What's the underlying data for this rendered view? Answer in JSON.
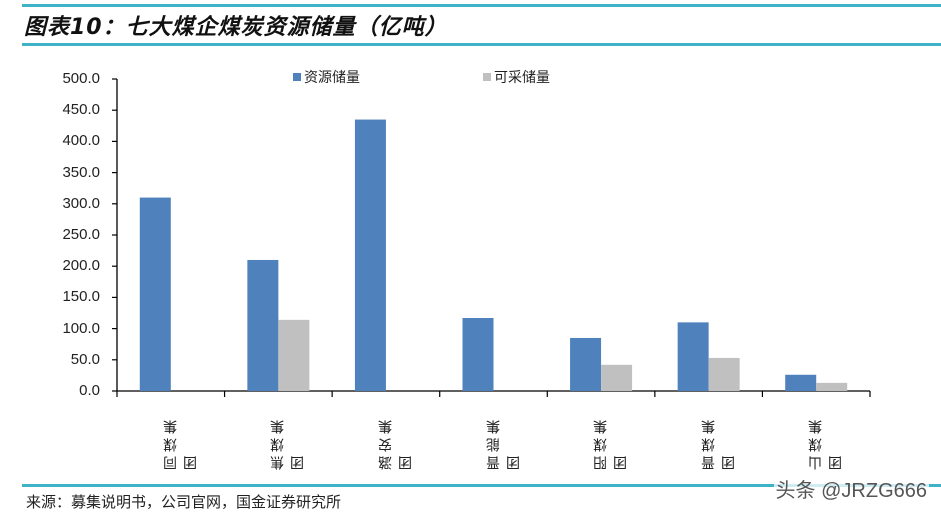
{
  "header": {
    "title": "图表10：七大煤企煤炭资源储量（亿吨）"
  },
  "footer": {
    "source": "来源：募集说明书，公司官网，国金证券研究所",
    "watermark": "头条 @JRZG666"
  },
  "colors": {
    "rule": "#3fb2c8",
    "series_resource": "#4f81bd",
    "series_recoverable": "#c0c0c0",
    "axis": "#000000"
  },
  "legend": [
    {
      "label": "资源储量",
      "color": "#4f81bd"
    },
    {
      "label": "可采储量",
      "color": "#c0c0c0"
    }
  ],
  "yticks": [
    "500.0",
    "450.0",
    "400.0",
    "350.0",
    "300.0",
    "250.0",
    "200.0",
    "150.0",
    "100.0",
    "50.0",
    "0.0"
  ],
  "categories": [
    "同煤集团",
    "焦煤集团",
    "潞安集团",
    "晋能集团",
    "阳煤集团",
    "晋煤集团",
    "山煤集团"
  ],
  "chart_data": {
    "type": "bar",
    "title": "图表10：七大煤企煤炭资源储量（亿吨）",
    "xlabel": "",
    "ylabel": "",
    "ylim": [
      0,
      500
    ],
    "ytick_step": 50,
    "grid": false,
    "legend_position": "top",
    "categories": [
      "同煤集团",
      "焦煤集团",
      "潞安集团",
      "晋能集团",
      "阳煤集团",
      "晋煤集团",
      "山煤集团"
    ],
    "series": [
      {
        "name": "资源储量",
        "values": [
          310,
          210,
          435,
          117,
          85,
          110,
          26
        ]
      },
      {
        "name": "可采储量",
        "values": [
          null,
          114,
          null,
          null,
          42,
          53,
          13
        ]
      }
    ]
  }
}
